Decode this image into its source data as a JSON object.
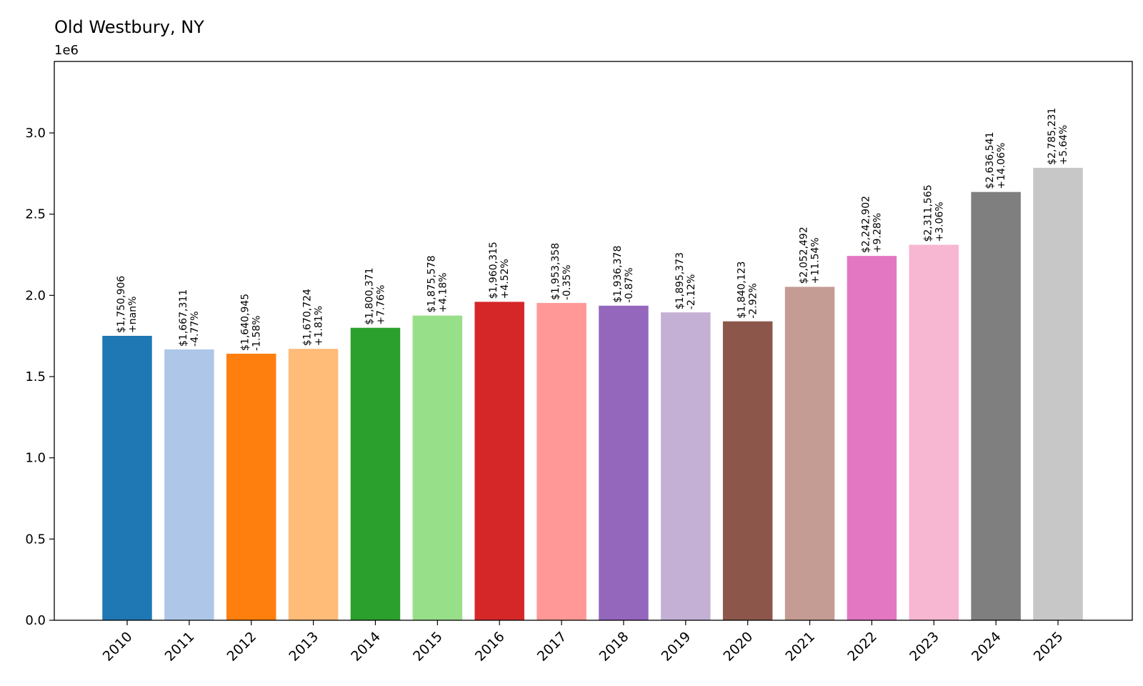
{
  "chart_data": {
    "type": "bar",
    "title": "Old Westbury, NY",
    "xlabel": "",
    "ylabel": "",
    "y_offset_label": "1e6",
    "ylim": [
      0,
      3440000
    ],
    "yticks": [
      {
        "value": 0,
        "label": "0.0"
      },
      {
        "value": 500000,
        "label": "0.5"
      },
      {
        "value": 1000000,
        "label": "1.0"
      },
      {
        "value": 1500000,
        "label": "1.5"
      },
      {
        "value": 2000000,
        "label": "2.0"
      },
      {
        "value": 2500000,
        "label": "2.5"
      },
      {
        "value": 3000000,
        "label": "3.0"
      }
    ],
    "grid": false,
    "legend": "none",
    "categories": [
      "2010",
      "2011",
      "2012",
      "2013",
      "2014",
      "2015",
      "2016",
      "2017",
      "2018",
      "2019",
      "2020",
      "2021",
      "2022",
      "2023",
      "2024",
      "2025"
    ],
    "values": [
      1750906,
      1667311,
      1640945,
      1670724,
      1800371,
      1875578,
      1960315,
      1953358,
      1936378,
      1895373,
      1840123,
      2052492,
      2242902,
      2311565,
      2636541,
      2785231
    ],
    "value_labels": [
      "$1,750,906",
      "$1,667,311",
      "$1,640,945",
      "$1,670,724",
      "$1,800,371",
      "$1,875,578",
      "$1,960,315",
      "$1,953,358",
      "$1,936,378",
      "$1,895,373",
      "$1,840,123",
      "$2,052,492",
      "$2,242,902",
      "$2,311,565",
      "$2,636,541",
      "$2,785,231"
    ],
    "change_labels": [
      "+nan%",
      "-4.77%",
      "-1.58%",
      "+1.81%",
      "+7.76%",
      "+4.18%",
      "+4.52%",
      "-0.35%",
      "-0.87%",
      "-2.12%",
      "-2.92%",
      "+11.54%",
      "+9.28%",
      "+3.06%",
      "+14.06%",
      "+5.64%"
    ],
    "colors": [
      "#1f77b4",
      "#aec7e8",
      "#ff7f0e",
      "#ffbb78",
      "#2ca02c",
      "#98df8a",
      "#d62728",
      "#ff9896",
      "#9467bd",
      "#c5b0d5",
      "#8c564b",
      "#c49c94",
      "#e377c2",
      "#f7b6d2",
      "#7f7f7f",
      "#c7c7c7"
    ]
  }
}
